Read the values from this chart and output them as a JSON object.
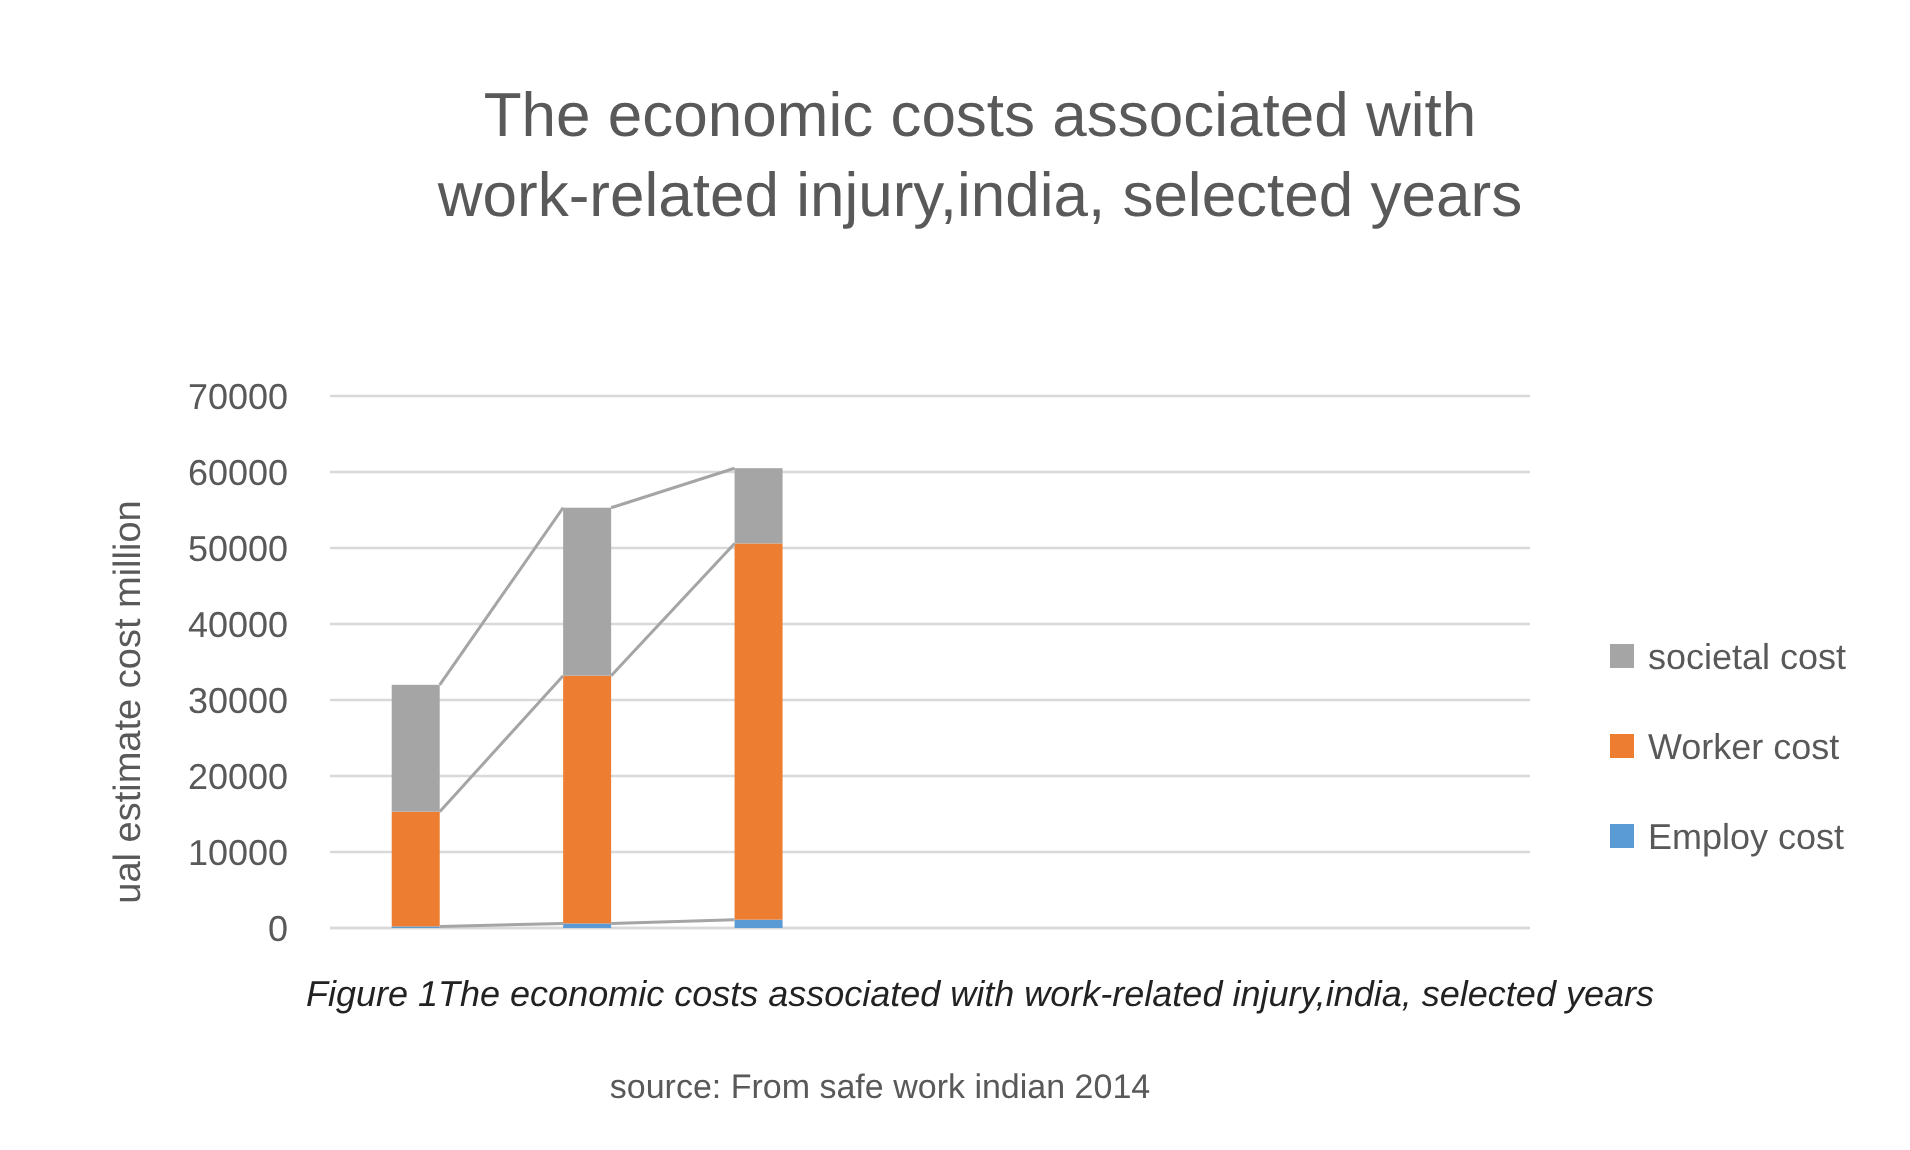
{
  "chart_data": {
    "type": "bar",
    "stacked": true,
    "title": "The economic costs associated with work-related injury,india, selected years",
    "ylabel": "ual estimate cost million",
    "categories": [
      null,
      null,
      null,
      null,
      null,
      null,
      null
    ],
    "series": [
      {
        "name": "Employ cost",
        "color": "#5b9bd5",
        "values": [
          200,
          600,
          1100,
          null,
          null,
          null,
          null
        ]
      },
      {
        "name": "Worker cost",
        "color": "#ed7d31",
        "values": [
          15100,
          32600,
          49500,
          null,
          null,
          null,
          null
        ]
      },
      {
        "name": "societal cost",
        "color": "#a5a5a5",
        "values": [
          16700,
          22100,
          9900,
          null,
          null,
          null,
          null
        ]
      }
    ],
    "ylim": [
      0,
      70000
    ],
    "yticks": [
      0,
      10000,
      20000,
      30000,
      40000,
      50000,
      60000,
      70000
    ],
    "grid": "y",
    "legend": "right",
    "annotations": [
      "Figure 1The economic costs associated with work-related injury,india, selected years",
      "source: From safe work indian 2014"
    ]
  }
}
